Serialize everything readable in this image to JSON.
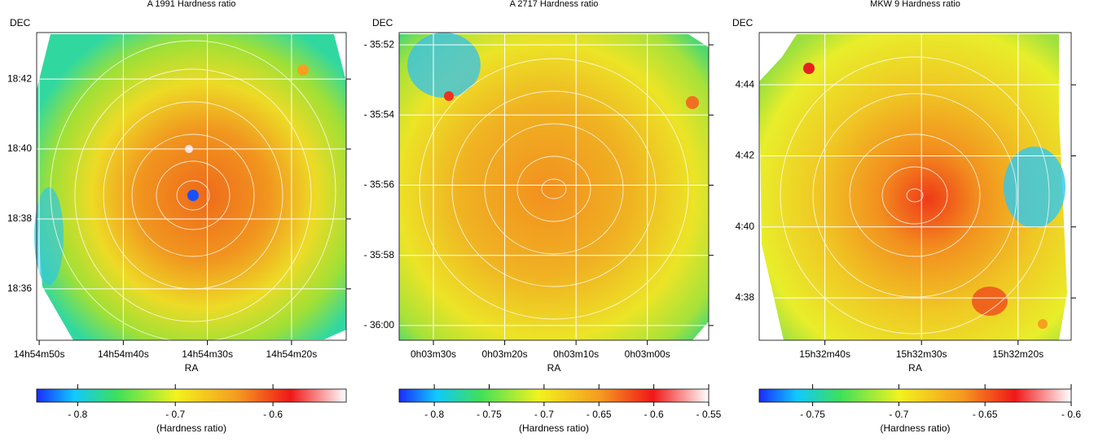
{
  "chart_data": [
    {
      "type": "heatmap",
      "title": "A 1991 Hardness ratio",
      "xlabel": "RA",
      "ylabel": "DEC",
      "xlim": [
        53690.3,
        53653.5
      ],
      "xticks": [
        {
          "value": 53690,
          "label": "14h54m50s"
        },
        {
          "value": 53680,
          "label": "14h54m40s"
        },
        {
          "value": 53670,
          "label": "14h54m30s"
        },
        {
          "value": 53660,
          "label": "14h54m20s"
        }
      ],
      "ylim": [
        1114.53,
        1123.33
      ],
      "yticks": [
        {
          "value": 1122,
          "label": "18:42"
        },
        {
          "value": 1120,
          "label": "18:40"
        },
        {
          "value": 1118,
          "label": "18:38"
        },
        {
          "value": 1116,
          "label": "18:36"
        }
      ],
      "grid": true,
      "colorbar": {
        "label": "(Hardness ratio)",
        "lim": [
          -0.842,
          -0.525
        ],
        "ticks": [
          {
            "value": -0.8,
            "label": "- 0.8"
          },
          {
            "value": -0.7,
            "label": "- 0.7"
          },
          {
            "value": -0.6,
            "label": "- 0.6"
          }
        ]
      }
    },
    {
      "type": "heatmap",
      "title": "A 2717 Hardness ratio",
      "xlabel": "RA",
      "ylabel": "DEC",
      "xlim": [
        214.8,
        171.4
      ],
      "xticks": [
        {
          "value": 210,
          "label": "0h03m30s"
        },
        {
          "value": 200,
          "label": "0h03m20s"
        },
        {
          "value": 190,
          "label": "0h03m10s"
        },
        {
          "value": 180,
          "label": "0h03m00s"
        }
      ],
      "ylim": [
        -2160.42,
        -2151.65
      ],
      "yticks": [
        {
          "value": -2152,
          "label": "- 35:52"
        },
        {
          "value": -2154,
          "label": "- 35:54"
        },
        {
          "value": -2156,
          "label": "- 35:56"
        },
        {
          "value": -2158,
          "label": "- 35:58"
        },
        {
          "value": -2160,
          "label": "- 36:00"
        }
      ],
      "grid": true,
      "colorbar": {
        "label": "(Hardness ratio)",
        "lim": [
          -0.832,
          -0.55
        ],
        "ticks": [
          {
            "value": -0.8,
            "label": "- 0.8"
          },
          {
            "value": -0.75,
            "label": "- 0.75"
          },
          {
            "value": -0.7,
            "label": "- 0.7"
          },
          {
            "value": -0.65,
            "label": "- 0.65"
          },
          {
            "value": -0.6,
            "label": "- 0.6"
          },
          {
            "value": -0.55,
            "label": "- 0.55"
          }
        ]
      }
    },
    {
      "type": "heatmap",
      "title": "MKW 9 Hardness ratio",
      "xlabel": "RA",
      "ylabel": "DEC",
      "xlim": [
        55966.8,
        55934.5
      ],
      "xticks": [
        {
          "value": 55960,
          "label": "15h32m40s"
        },
        {
          "value": 55950,
          "label": "15h32m30s"
        },
        {
          "value": 55940,
          "label": "15h32m20s"
        }
      ],
      "ylim": [
        276.81,
        285.47
      ],
      "yticks": [
        {
          "value": 284,
          "label": "4:44"
        },
        {
          "value": 282,
          "label": "4:42"
        },
        {
          "value": 280,
          "label": "4:40"
        },
        {
          "value": 278,
          "label": "4:38"
        }
      ],
      "grid": true,
      "colorbar": {
        "label": "(Hardness ratio)",
        "lim": [
          -0.781,
          -0.6
        ],
        "ticks": [
          {
            "value": -0.75,
            "label": "- 0.75"
          },
          {
            "value": -0.7,
            "label": "- 0.7"
          },
          {
            "value": -0.65,
            "label": "- 0.65"
          },
          {
            "value": -0.6,
            "label": "- 0.6"
          }
        ]
      }
    }
  ]
}
